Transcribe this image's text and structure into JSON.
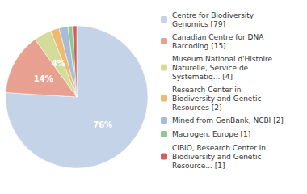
{
  "chart_data": {
    "type": "pie",
    "categories": [
      "Centre for Biodiversity\nGenomics [79]",
      "Canadian Centre for DNA\nBarcoding [15]",
      "Museum National d'Histoire\nNaturelle, Service de\nSystematiq... [4]",
      "Research Center in\nBiodiversity and Genetic\nResources [2]",
      "Mined from GenBank, NCBI [2]",
      "Macrogen, Europe [1]",
      "CIBIO, Research Center in\nBiodiversity and Genetic\nResource... [1]"
    ],
    "values": [
      76,
      14,
      4,
      2,
      2,
      1,
      1
    ],
    "value_labels": [
      "76%",
      "14%",
      "4%",
      null,
      null,
      null,
      null
    ],
    "colors": [
      "#c5d3e8",
      "#e8a090",
      "#d4dc9a",
      "#f0b870",
      "#a8bcd8",
      "#90c890",
      "#d06060"
    ],
    "data_labels": true,
    "legend": "right"
  }
}
